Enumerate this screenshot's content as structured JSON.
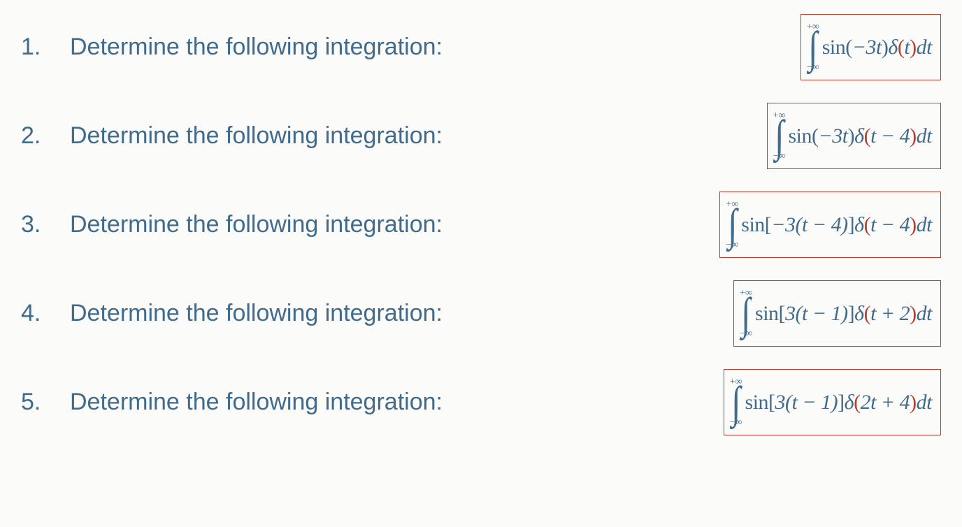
{
  "colors": {
    "text_primary": "#416b8c",
    "accent_red": "#c0392b",
    "background": "#fbfbf9",
    "border": "#c0392b"
  },
  "typography": {
    "problem_fontsize": 34,
    "formula_fontsize": 30,
    "integral_limit_fontsize": 14,
    "integral_sign_fontsize": 64
  },
  "integral": {
    "upper_limit": "+∞",
    "lower_limit": "−∞",
    "diff": "dt"
  },
  "problems": [
    {
      "number": "1.",
      "text": "Determine the following integration:",
      "formula": {
        "func": "sin",
        "arg_open": "(",
        "arg": "−3t",
        "arg_close": ")",
        "delta_arg_open": "(",
        "delta_arg": "t",
        "delta_arg_close": ")"
      }
    },
    {
      "number": "2.",
      "text": "Determine the following integration:",
      "formula": {
        "func": "sin",
        "arg_open": "(",
        "arg": "−3t",
        "arg_close": ")",
        "delta_arg_open": "(",
        "delta_arg": "t − 4",
        "delta_arg_close": ")"
      }
    },
    {
      "number": "3.",
      "text": "Determine the following integration:",
      "formula": {
        "func": "sin",
        "arg_open": "[",
        "arg": "−3(t − 4)",
        "arg_close": "]",
        "delta_arg_open": "(",
        "delta_arg": "t − 4",
        "delta_arg_close": ")"
      }
    },
    {
      "number": "4.",
      "text": "Determine the following integration:",
      "formula": {
        "func": "sin",
        "arg_open": "[",
        "arg": "3(t − 1)",
        "arg_close": "]",
        "delta_arg_open": "(",
        "delta_arg": "t + 2",
        "delta_arg_close": ")"
      }
    },
    {
      "number": "5.",
      "text": "Determine the following integration:",
      "formula": {
        "func": "sin",
        "arg_open": "[",
        "arg": "3(t − 1)",
        "arg_close": "]",
        "delta_arg_open": "(",
        "delta_arg": "2t + 4",
        "delta_arg_close": ")"
      }
    }
  ]
}
